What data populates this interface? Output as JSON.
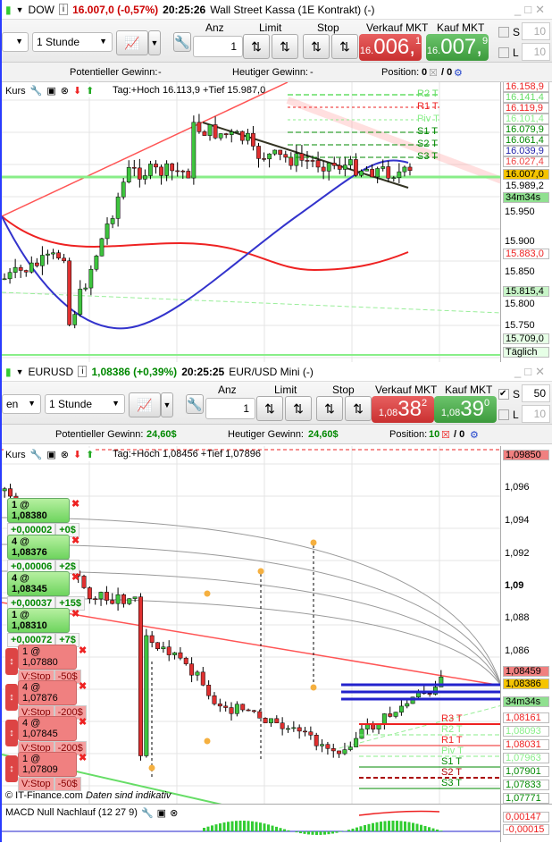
{
  "top": {
    "symbol": "DOW",
    "price_change": "16.007,0 (-0,57%)",
    "time": "20:25:26",
    "instrument": "Wall Street Kassa (1E Kontrakt) (-)",
    "interval": "1 Stunde",
    "anz_label": "Anz",
    "anz_value": "1",
    "limit_label": "Limit",
    "stop_label": "Stop",
    "sell_label": "Verkauf MKT",
    "sell_small": "16.",
    "sell_big": "006,",
    "sell_tail": "1",
    "buy_label": "Kauf MKT",
    "buy_small": "16.",
    "buy_big": "007,",
    "buy_tail": "9",
    "s_label": "S",
    "s_value": "10",
    "l_label": "L",
    "l_value": "10",
    "pot_label": "Potentieller Gewinn:",
    "pot_value": "-",
    "heute_label": "Heutiger Gewinn:",
    "heute_value": "-",
    "pos_label": "Position:",
    "pos_value": "0",
    "pos_value2": "/ 0",
    "kurs": "Kurs",
    "tag_info": "Tag:+Hoch 16.113,9 +Tief 15.987,0",
    "pivots": [
      "R2 T",
      "R1 T",
      "Piv T",
      "S1 T",
      "S2 T",
      "S3 T"
    ],
    "axis_ticks": [
      "15.950",
      "15.900",
      "15.850",
      "15.800",
      "15.750"
    ],
    "price_labels": [
      {
        "v": "16.158,9",
        "c": "#e22"
      },
      {
        "v": "16.141,4",
        "c": "#6d6"
      },
      {
        "v": "16.119,9",
        "c": "#e22"
      },
      {
        "v": "16.101,4",
        "c": "#8e8"
      },
      {
        "v": "16.079,9",
        "c": "#080"
      },
      {
        "v": "16.061,4",
        "c": "#080"
      },
      {
        "v": "16.039,9",
        "c": "#22a"
      },
      {
        "v": "16.027,4",
        "c": "#e44"
      }
    ],
    "current": "16.007,0",
    "below": "15.989,2",
    "timer": "34m34s",
    "lab_883": "15.883,0",
    "lab_815": "15.815,4",
    "lab_709": "15.709,0",
    "lab_daily": "Täglich"
  },
  "bottom": {
    "symbol": "EURUSD",
    "price_change": "1,08386 (+0,39%)",
    "time": "20:25:25",
    "instrument": "EUR/USD Mini (-)",
    "left_select": "en",
    "interval": "1 Stunde",
    "anz_label": "Anz",
    "anz_value": "1",
    "limit_label": "Limit",
    "stop_label": "Stop",
    "sell_label": "Verkauf MKT",
    "sell_small": "1,08",
    "sell_big": "38",
    "sell_tail": "2",
    "buy_label": "Kauf MKT",
    "buy_small": "1,08",
    "buy_big": "39",
    "buy_tail": "0",
    "s_label": "S",
    "s_value": "50",
    "l_label": "L",
    "l_value": "10",
    "pot_label": "Potentieller Gewinn:",
    "pot_value": "24,60$",
    "heute_label": "Heutiger Gewinn:",
    "heute_value": "24,60$",
    "pos_label": "Position:",
    "pos_value": "10",
    "pos_value2": "/ 0",
    "kurs": "Kurs",
    "tag_info": "Tag:+Hoch 1,08456 +Tief 1,07896",
    "axis_ticks": [
      "1,096",
      "1,094",
      "1,092",
      "1,09",
      "1,088",
      "1,086"
    ],
    "top_label": "1,09850",
    "current": "1,08386",
    "timer": "34m34s",
    "lab_459": "1,08459",
    "price_labels": [
      {
        "v": "1,08161",
        "c": "#e22"
      },
      {
        "v": "1,08093",
        "c": "#8e8"
      },
      {
        "v": "1,08031",
        "c": "#e22"
      },
      {
        "v": "1,07963",
        "c": "#8e8"
      },
      {
        "v": "1,07901",
        "c": "#080"
      },
      {
        "v": "1,07833",
        "c": "#080"
      },
      {
        "v": "1,07771",
        "c": "#080"
      }
    ],
    "pivots": [
      "R3 T",
      "R2 T",
      "R1 T",
      "Piv T",
      "S1 T",
      "S2 T",
      "S3 T"
    ],
    "orders": [
      {
        "head": "1 @ 1,08380",
        "diff": "+0,00002",
        "pl": "+0$"
      },
      {
        "head": "4 @ 1,08376",
        "diff": "+0,00006",
        "pl": "+2$"
      },
      {
        "head": "4 @ 1,08345",
        "diff": "+0,00037",
        "pl": "+15$"
      },
      {
        "head": "1 @ 1,08310",
        "diff": "+0,00072",
        "pl": "+7$"
      }
    ],
    "stops": [
      {
        "head": "1 @ 1,07880",
        "type": "V:Stop",
        "pl": "-50$"
      },
      {
        "head": "4 @ 1,07876",
        "type": "V:Stop",
        "pl": "-200$"
      },
      {
        "head": "4 @ 1,07845",
        "type": "V:Stop",
        "pl": "-200$"
      },
      {
        "head": "1 @ 1,07809",
        "type": "V:Stop",
        "pl": "-50$"
      }
    ],
    "footer": "© IT-Finance.com",
    "footer_note": "Daten sind indikativ",
    "macd_title": "MACD Null Nachlauf (12 27 9)",
    "macd_v1": "0,00147",
    "macd_v2": "-0,00015"
  },
  "colors": {
    "sell": "#d23c3c",
    "buy": "#4caf4c",
    "up": "#3ec43e",
    "down": "#e03030",
    "current": "#f5c400"
  }
}
